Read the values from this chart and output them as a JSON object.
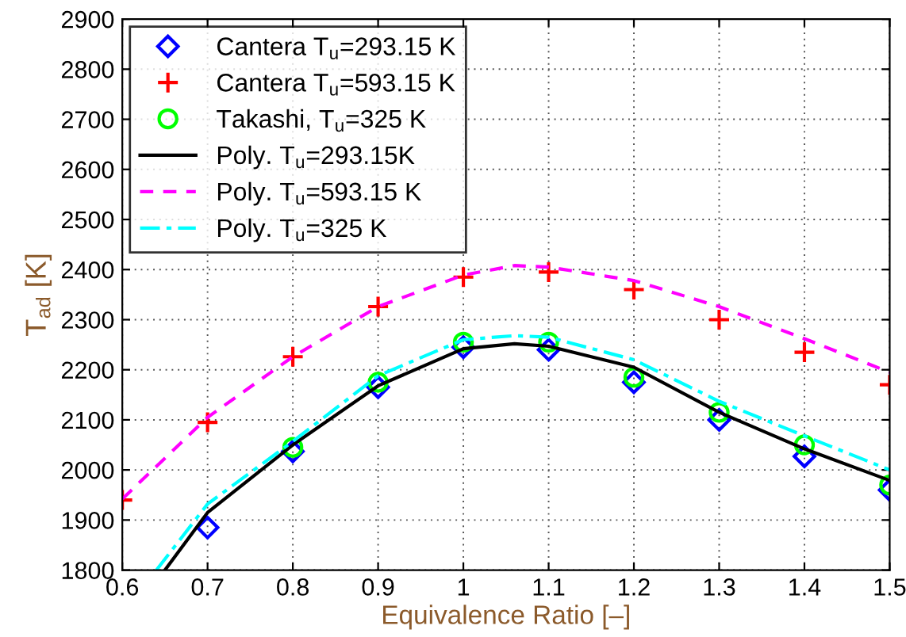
{
  "chart_data": {
    "type": "scatter",
    "xlabel": "Equivalence Ratio [–]",
    "ylabel": "T$_{ad}$ [K]",
    "xlim": [
      0.6,
      1.5
    ],
    "ylim": [
      1800,
      2900
    ],
    "xticks": [
      0.6,
      0.7,
      0.8,
      0.9,
      1,
      1.1,
      1.2,
      1.3,
      1.4,
      1.5
    ],
    "yticks": [
      1800,
      1900,
      2000,
      2100,
      2200,
      2300,
      2400,
      2500,
      2600,
      2700,
      2800,
      2900
    ],
    "grid": true,
    "legend": "top left",
    "series": [
      {
        "name": "Cantera T$_{u}$=293.15 K",
        "marker": "diamond",
        "color": "#0000ff",
        "x": [
          0.7,
          0.8,
          0.9,
          1.0,
          1.1,
          1.2,
          1.3,
          1.4,
          1.5
        ],
        "values": [
          1885,
          2037,
          2165,
          2245,
          2240,
          2175,
          2100,
          2027,
          1960
        ]
      },
      {
        "name": "Cantera T$_{u}$=593.15 K",
        "marker": "cross",
        "color": "#ff0000",
        "x": [
          0.6,
          0.7,
          0.8,
          0.9,
          1.0,
          1.1,
          1.2,
          1.3,
          1.4,
          1.5
        ],
        "values": [
          1940,
          2095,
          2226,
          2326,
          2385,
          2395,
          2360,
          2300,
          2235,
          2170
        ]
      },
      {
        "name": "Takashi, T$_{u}$=325 K",
        "marker": "circle",
        "color": "#00ff00",
        "x": [
          0.8,
          0.9,
          1.0,
          1.1,
          1.2,
          1.3,
          1.4,
          1.5
        ],
        "values": [
          2045,
          2175,
          2255,
          2255,
          2185,
          2115,
          2050,
          1970
        ]
      },
      {
        "name": "Poly. T$_{u}$=293.15K",
        "type": "line",
        "line_style": "solid",
        "color": "#000000",
        "x": [
          0.65,
          0.7,
          0.8,
          0.9,
          1.0,
          1.06,
          1.1,
          1.2,
          1.3,
          1.4,
          1.5
        ],
        "values": [
          1800,
          1915,
          2050,
          2168,
          2242,
          2252,
          2247,
          2205,
          2115,
          2042,
          1979
        ]
      },
      {
        "name": "Poly. T$_{u}$=593.15 K",
        "type": "line",
        "line_style": "dashed",
        "color": "#ff00ff",
        "x": [
          0.6,
          0.7,
          0.8,
          0.9,
          1.0,
          1.06,
          1.1,
          1.2,
          1.3,
          1.4,
          1.5
        ],
        "values": [
          1942,
          2105,
          2226,
          2326,
          2389,
          2408,
          2405,
          2378,
          2326,
          2262,
          2195
        ]
      },
      {
        "name": "Poly. T$_{u}$=325 K",
        "type": "line",
        "line_style": "dashdot",
        "color": "#00ffff",
        "x": [
          0.64,
          0.7,
          0.8,
          0.9,
          1.0,
          1.06,
          1.1,
          1.2,
          1.3,
          1.4,
          1.5
        ],
        "values": [
          1800,
          1932,
          2057,
          2188,
          2260,
          2268,
          2265,
          2220,
          2137,
          2068,
          2000
        ]
      }
    ]
  }
}
